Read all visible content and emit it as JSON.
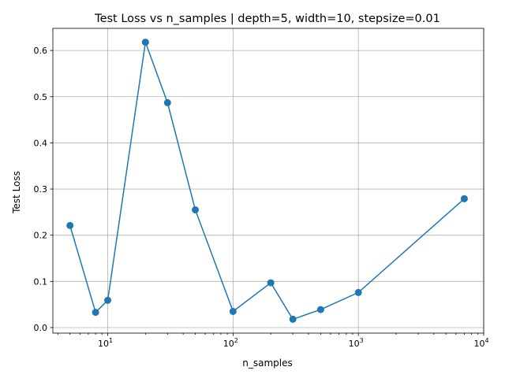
{
  "chart_data": {
    "type": "line",
    "title": "Test Loss vs n_samples | depth=5, width=10, stepsize=0.01",
    "xlabel": "n_samples",
    "ylabel": "Test Loss",
    "xscale": "log",
    "xlim": [
      3.65,
      10000
    ],
    "ylim": [
      -0.012,
      0.648
    ],
    "grid": true,
    "x_ticks": [
      {
        "value": 10,
        "base": "10",
        "exp": "1"
      },
      {
        "value": 100,
        "base": "10",
        "exp": "2"
      },
      {
        "value": 1000,
        "base": "10",
        "exp": "3"
      },
      {
        "value": 10000,
        "base": "10",
        "exp": "4"
      }
    ],
    "y_ticks": [
      {
        "value": 0.0,
        "label": "0.0"
      },
      {
        "value": 0.1,
        "label": "0.1"
      },
      {
        "value": 0.2,
        "label": "0.2"
      },
      {
        "value": 0.3,
        "label": "0.3"
      },
      {
        "value": 0.4,
        "label": "0.4"
      },
      {
        "value": 0.5,
        "label": "0.5"
      },
      {
        "value": 0.6,
        "label": "0.6"
      }
    ],
    "series": [
      {
        "color": "#1f77b4",
        "marker": "circle",
        "x": [
          5,
          8,
          10,
          20,
          30,
          50,
          100,
          200,
          300,
          500,
          1000,
          7000
        ],
        "y": [
          0.221,
          0.033,
          0.059,
          0.618,
          0.487,
          0.255,
          0.035,
          0.097,
          0.018,
          0.039,
          0.076,
          0.279
        ]
      }
    ]
  }
}
